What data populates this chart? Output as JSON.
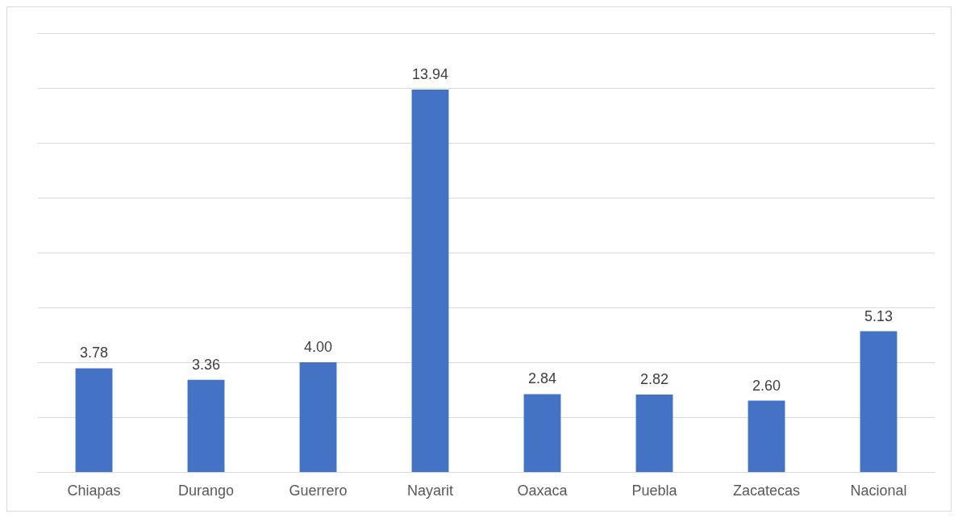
{
  "chart_data": {
    "type": "bar",
    "categories": [
      "Chiapas",
      "Durango",
      "Guerrero",
      "Nayarit",
      "Oaxaca",
      "Puebla",
      "Zacatecas",
      "Nacional"
    ],
    "values": [
      3.78,
      3.36,
      4.0,
      13.94,
      2.84,
      2.82,
      2.6,
      5.13
    ],
    "value_labels": [
      "3.78",
      "3.36",
      "4.00",
      "13.94",
      "2.84",
      "2.82",
      "2.60",
      "5.13"
    ],
    "color": "#4472c4",
    "ylim": [
      0,
      16
    ],
    "yticks": [
      {
        "value": 0,
        "label": null
      },
      {
        "value": 2,
        "label": null
      },
      {
        "value": 4,
        "label": null
      },
      {
        "value": 6,
        "label": null
      },
      {
        "value": 8,
        "label": null
      },
      {
        "value": 10,
        "label": null
      },
      {
        "value": 12,
        "label": null
      },
      {
        "value": 14,
        "label": null
      },
      {
        "value": 16,
        "label": null
      }
    ],
    "grid": true
  }
}
